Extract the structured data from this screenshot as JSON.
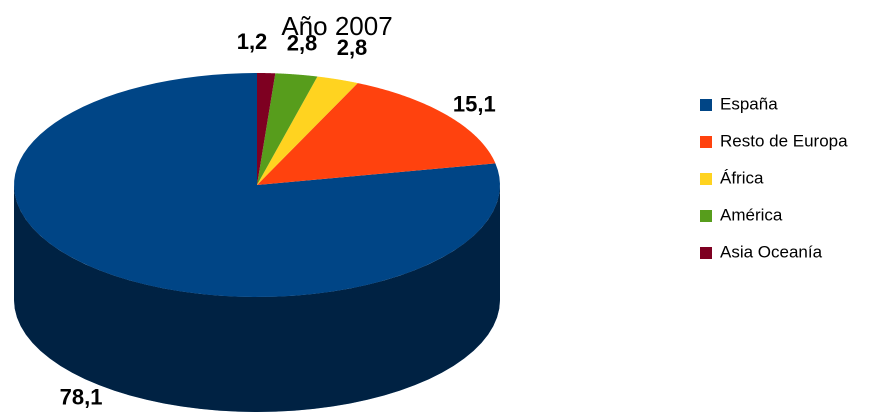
{
  "chart_data": {
    "type": "pie",
    "title": "Año 2007",
    "categories": [
      "España",
      "Resto de Europa",
      "África",
      "América",
      "Asia  Oceanía"
    ],
    "values": [
      78.1,
      15.1,
      2.8,
      2.8,
      1.2
    ],
    "value_labels": [
      "78,1",
      "15,1",
      "2,8",
      "2,8",
      "1,2"
    ],
    "colors": [
      "#004586",
      "#ff420e",
      "#ffd320",
      "#579d1c",
      "#7e0021"
    ],
    "legend": "right"
  }
}
